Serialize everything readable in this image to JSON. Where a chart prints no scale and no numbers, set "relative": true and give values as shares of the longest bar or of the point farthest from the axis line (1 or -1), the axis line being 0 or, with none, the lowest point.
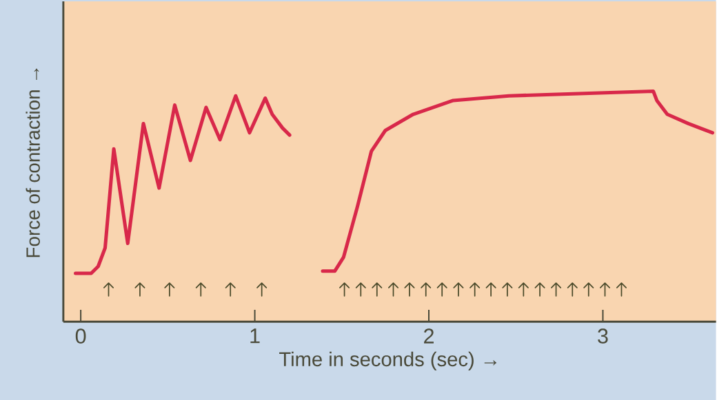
{
  "chart_data": {
    "type": "line",
    "relative": true,
    "xlabel": "Time in seconds (sec) →",
    "ylabel": "Force of contraction →",
    "xlim": [
      -0.1,
      3.65
    ],
    "xticks": [
      0,
      1,
      2,
      3
    ],
    "series": [
      {
        "type": "line",
        "color": "#d8284a",
        "x": [
          -0.03,
          0.06,
          0.1,
          0.14,
          0.19,
          0.27,
          0.36,
          0.45,
          0.54,
          0.63,
          0.72,
          0.8,
          0.89,
          0.97,
          1.06,
          1.1,
          1.16,
          1.2
        ],
        "values": [
          0.21,
          0.21,
          0.24,
          0.32,
          0.75,
          0.34,
          0.86,
          0.58,
          0.94,
          0.7,
          0.93,
          0.79,
          0.98,
          0.82,
          0.97,
          0.9,
          0.84,
          0.81
        ]
      },
      {
        "type": "line",
        "color": "#d8284a",
        "x": [
          1.39,
          1.46,
          1.51,
          1.59,
          1.67,
          1.75,
          1.91,
          2.14,
          2.46,
          2.86,
          3.29,
          3.31,
          3.37,
          3.49,
          3.63
        ],
        "values": [
          0.22,
          0.22,
          0.28,
          0.5,
          0.74,
          0.83,
          0.9,
          0.96,
          0.98,
          0.99,
          1.0,
          0.96,
          0.9,
          0.86,
          0.82
        ]
      },
      {
        "type": "scatter",
        "color": "#4a4a2a",
        "x": [
          0.16,
          0.34,
          0.51,
          0.69,
          0.86,
          1.04,
          1.515,
          1.609,
          1.702,
          1.796,
          1.889,
          1.983,
          2.076,
          2.17,
          2.264,
          2.357,
          2.451,
          2.544,
          2.638,
          2.731,
          2.825,
          2.918,
          3.012,
          3.107
        ],
        "values": [
          0.14,
          0.14,
          0.14,
          0.14,
          0.14,
          0.14,
          0.14,
          0.14,
          0.14,
          0.14,
          0.14,
          0.14,
          0.14,
          0.14,
          0.14,
          0.14,
          0.14,
          0.14,
          0.14,
          0.14,
          0.14,
          0.14,
          0.14,
          0.14
        ]
      }
    ]
  }
}
